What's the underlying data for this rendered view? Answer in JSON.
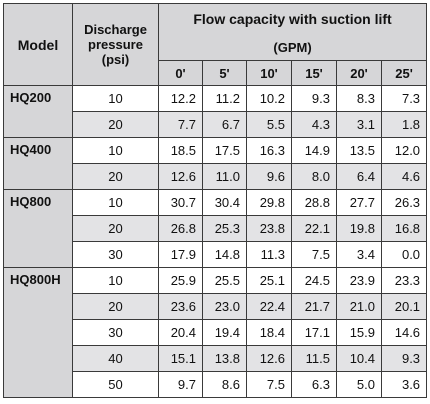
{
  "headers": {
    "model": "Model",
    "discharge_pressure": [
      "Discharge",
      "pressure",
      "(psi)"
    ],
    "flow_title": "Flow capacity with suction lift",
    "flow_unit": "(GPM)",
    "suction_lifts": [
      "0'",
      "5'",
      "10'",
      "15'",
      "20'",
      "25'"
    ]
  },
  "models": [
    {
      "name": "HQ200",
      "rows": [
        {
          "pressure": "10",
          "values": [
            "12.2",
            "11.2",
            "10.2",
            "9.3",
            "8.3",
            "7.3"
          ]
        },
        {
          "pressure": "20",
          "values": [
            "7.7",
            "6.7",
            "5.5",
            "4.3",
            "3.1",
            "1.8"
          ]
        }
      ]
    },
    {
      "name": "HQ400",
      "rows": [
        {
          "pressure": "10",
          "values": [
            "18.5",
            "17.5",
            "16.3",
            "14.9",
            "13.5",
            "12.0"
          ]
        },
        {
          "pressure": "20",
          "values": [
            "12.6",
            "11.0",
            "9.6",
            "8.0",
            "6.4",
            "4.6"
          ]
        }
      ]
    },
    {
      "name": "HQ800",
      "rows": [
        {
          "pressure": "10",
          "values": [
            "30.7",
            "30.4",
            "29.8",
            "28.8",
            "27.7",
            "26.3"
          ]
        },
        {
          "pressure": "20",
          "values": [
            "26.8",
            "25.3",
            "23.8",
            "22.1",
            "19.8",
            "16.8"
          ]
        },
        {
          "pressure": "30",
          "values": [
            "17.9",
            "14.8",
            "11.3",
            "7.5",
            "3.4",
            "0.0"
          ]
        }
      ]
    },
    {
      "name": "HQ800H",
      "rows": [
        {
          "pressure": "10",
          "values": [
            "25.9",
            "25.5",
            "25.1",
            "24.5",
            "23.9",
            "23.3"
          ]
        },
        {
          "pressure": "20",
          "values": [
            "23.6",
            "23.0",
            "22.4",
            "21.7",
            "21.0",
            "20.1"
          ]
        },
        {
          "pressure": "30",
          "values": [
            "20.4",
            "19.4",
            "18.4",
            "17.1",
            "15.9",
            "14.6"
          ]
        },
        {
          "pressure": "40",
          "values": [
            "15.1",
            "13.8",
            "12.6",
            "11.5",
            "10.4",
            "9.3"
          ]
        },
        {
          "pressure": "50",
          "values": [
            "9.7",
            "8.6",
            "7.5",
            "6.3",
            "5.0",
            "3.6"
          ]
        }
      ]
    }
  ]
}
